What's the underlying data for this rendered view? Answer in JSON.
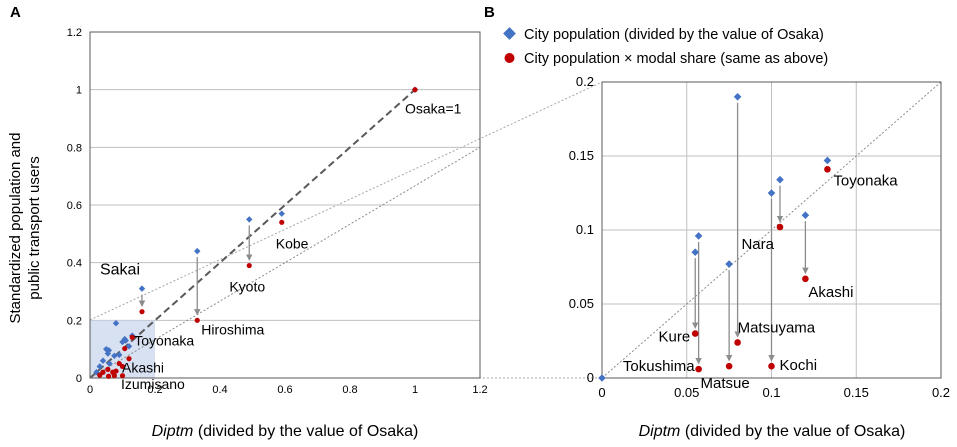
{
  "colors": {
    "population": "#4472C4",
    "modal": "#C00000",
    "grid": "#BFBFBF",
    "axis": "#595959",
    "arrow": "#8C8C8C",
    "highlight": "#C9D7EE"
  },
  "legend": {
    "population": "City population (divided by the value of Osaka)",
    "modal": "City population × modal share (same as above)"
  },
  "chart_data": [
    {
      "panel": "A",
      "type": "scatter",
      "xlabel_italic": "Diptm",
      "xlabel_rest": " (divided by the value of Osaka)",
      "ylabel_lines": [
        "Standardized population and",
        "public transport users"
      ],
      "xlim": [
        0,
        1.2
      ],
      "ylim": [
        0,
        1.2
      ],
      "xticks": [
        "0",
        "0.2",
        "0.4",
        "0.6",
        "0.8",
        "1",
        "1.2"
      ],
      "yticks": [
        "0",
        "0.2",
        "0.4",
        "0.6",
        "0.8",
        "1",
        "1.2"
      ],
      "grid": "horizontal",
      "highlight_region": {
        "x": [
          0,
          0.2
        ],
        "y": [
          0,
          0.2
        ]
      },
      "series": [
        {
          "name": "City population (divided by the value of Osaka)",
          "marker": "diamond",
          "points": [
            [
              1.0,
              1.0
            ],
            [
              0.59,
              0.57
            ],
            [
              0.49,
              0.55
            ],
            [
              0.33,
              0.44
            ],
            [
              0.16,
              0.31
            ],
            [
              0.13,
              0.147
            ],
            [
              0.12,
              0.11
            ],
            [
              0.107,
              0.135
            ],
            [
              0.1,
              0.125
            ],
            [
              0.08,
              0.19
            ],
            [
              0.075,
              0.077
            ],
            [
              0.058,
              0.096
            ],
            [
              0.055,
              0.085
            ],
            [
              0.04,
              0.06
            ],
            [
              0.03,
              0.04
            ],
            [
              0.02,
              0.02
            ],
            [
              0.06,
              0.05
            ],
            [
              0.09,
              0.08
            ],
            [
              0.05,
              0.1
            ],
            [
              0.11,
              0.13
            ]
          ]
        },
        {
          "name": "City population × modal share (same as above)",
          "marker": "circle",
          "points": [
            [
              1.0,
              1.0
            ],
            [
              0.59,
              0.54
            ],
            [
              0.49,
              0.39
            ],
            [
              0.33,
              0.2
            ],
            [
              0.16,
              0.23
            ],
            [
              0.13,
              0.141
            ],
            [
              0.12,
              0.067
            ],
            [
              0.107,
              0.102
            ],
            [
              0.1,
              0.008
            ],
            [
              0.08,
              0.024
            ],
            [
              0.075,
              0.008
            ],
            [
              0.055,
              0.03
            ],
            [
              0.057,
              0.006
            ],
            [
              0.03,
              0.01
            ],
            [
              0.04,
              0.02
            ],
            [
              0.1,
              0.04
            ],
            [
              0.07,
              0.02
            ],
            [
              0.09,
              0.05
            ]
          ]
        }
      ],
      "arrows": [
        {
          "x": 0.59,
          "y0": 0.57,
          "y1": 0.54
        },
        {
          "x": 0.49,
          "y0": 0.55,
          "y1": 0.39
        },
        {
          "x": 0.33,
          "y0": 0.44,
          "y1": 0.2
        },
        {
          "x": 0.16,
          "y0": 0.31,
          "y1": 0.23
        }
      ],
      "lines": [
        {
          "style": "dashed-dark",
          "from": [
            0,
            0
          ],
          "to": [
            1.0,
            1.0
          ]
        },
        {
          "style": "dotted",
          "from": [
            0,
            0
          ],
          "to": [
            1.2,
            0.8
          ]
        }
      ],
      "annotations": [
        {
          "text": "Osaka=1",
          "x": 1.0,
          "y": 1.0,
          "anchor": "start",
          "dx": -10,
          "dy": 24
        },
        {
          "text": "Kobe",
          "x": 0.59,
          "y": 0.54,
          "anchor": "start",
          "dx": -6,
          "dy": 26
        },
        {
          "text": "Kyoto",
          "x": 0.49,
          "y": 0.39,
          "anchor": "middle",
          "dx": -2,
          "dy": 26
        },
        {
          "text": "Hiroshima",
          "x": 0.33,
          "y": 0.2,
          "anchor": "start",
          "dx": 4,
          "dy": 14
        },
        {
          "text": "Sakai",
          "x": 0.16,
          "y": 0.31,
          "anchor": "end",
          "dx": -2,
          "dy": -14
        },
        {
          "text": "Toyonaka",
          "x": 0.13,
          "y": 0.141,
          "anchor": "start",
          "dx": 2,
          "dy": 8
        },
        {
          "text": "Akashi",
          "x": 0.12,
          "y": 0.067,
          "anchor": "start",
          "dx": -7,
          "dy": 14
        },
        {
          "text": "Izumisano",
          "x": 0.12,
          "y": 0.0,
          "anchor": "start",
          "dx": -8,
          "dy": 11
        }
      ]
    },
    {
      "panel": "B",
      "type": "scatter",
      "xlabel_italic": "Diptm",
      "xlabel_rest": " (divided by the value of Osaka)",
      "xlim": [
        0,
        0.2
      ],
      "ylim": [
        0,
        0.2
      ],
      "xticks": [
        "0",
        "0.05",
        "0.1",
        "0.15",
        "0.2"
      ],
      "yticks": [
        "0",
        "0.05",
        "0.1",
        "0.15",
        "0.2"
      ],
      "grid": "both",
      "series": [
        {
          "name": "City population (divided by the value of Osaka)",
          "marker": "diamond",
          "points": [
            [
              0.08,
              0.19
            ],
            [
              0.133,
              0.147
            ],
            [
              0.1,
              0.125
            ],
            [
              0.105,
              0.134
            ],
            [
              0.12,
              0.11
            ],
            [
              0.055,
              0.085
            ],
            [
              0.057,
              0.096
            ],
            [
              0.075,
              0.077
            ],
            [
              0.0,
              0.0
            ]
          ]
        },
        {
          "name": "City population × modal share (same as above)",
          "marker": "circle",
          "points": [
            [
              0.133,
              0.141
            ],
            [
              0.105,
              0.102
            ],
            [
              0.12,
              0.067
            ],
            [
              0.055,
              0.03
            ],
            [
              0.08,
              0.024
            ],
            [
              0.057,
              0.006
            ],
            [
              0.075,
              0.008
            ],
            [
              0.1,
              0.008
            ]
          ]
        }
      ],
      "arrows": [
        {
          "x": 0.08,
          "y0": 0.19,
          "y1": 0.024
        },
        {
          "x": 0.1,
          "y0": 0.125,
          "y1": 0.008
        },
        {
          "x": 0.105,
          "y0": 0.134,
          "y1": 0.102
        },
        {
          "x": 0.12,
          "y0": 0.11,
          "y1": 0.067
        },
        {
          "x": 0.055,
          "y0": 0.085,
          "y1": 0.03
        },
        {
          "x": 0.057,
          "y0": 0.096,
          "y1": 0.006
        },
        {
          "x": 0.075,
          "y0": 0.077,
          "y1": 0.008
        }
      ],
      "lines": [
        {
          "style": "dotted",
          "from": [
            0,
            0
          ],
          "to": [
            0.2,
            0.2
          ]
        }
      ],
      "annotations": [
        {
          "text": "Toyonaka",
          "x": 0.133,
          "y": 0.141,
          "anchor": "start",
          "dx": 6,
          "dy": 16
        },
        {
          "text": "Nara",
          "x": 0.105,
          "y": 0.102,
          "anchor": "end",
          "dx": -6,
          "dy": 22
        },
        {
          "text": "Akashi",
          "x": 0.12,
          "y": 0.067,
          "anchor": "start",
          "dx": 3,
          "dy": 18
        },
        {
          "text": "Matsuyama",
          "x": 0.08,
          "y": 0.024,
          "anchor": "start",
          "dx": 0,
          "dy": -10
        },
        {
          "text": "Kure",
          "x": 0.055,
          "y": 0.03,
          "anchor": "end",
          "dx": -5,
          "dy": 8
        },
        {
          "text": "Tokushima",
          "x": 0.057,
          "y": 0.006,
          "anchor": "end",
          "dx": -4,
          "dy": 2
        },
        {
          "text": "Matsue",
          "x": 0.075,
          "y": 0.008,
          "anchor": "middle",
          "dx": -4,
          "dy": 22
        },
        {
          "text": "Kochi",
          "x": 0.1,
          "y": 0.008,
          "anchor": "start",
          "dx": 8,
          "dy": 4
        }
      ]
    }
  ],
  "panel_labels": [
    "A",
    "B"
  ]
}
